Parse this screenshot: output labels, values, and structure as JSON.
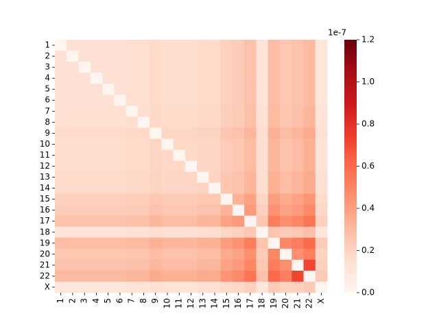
{
  "chart_data": {
    "type": "heatmap",
    "rows": [
      "1",
      "2",
      "3",
      "4",
      "5",
      "6",
      "7",
      "8",
      "9",
      "10",
      "11",
      "12",
      "13",
      "14",
      "15",
      "16",
      "17",
      "18",
      "19",
      "20",
      "21",
      "22",
      "X"
    ],
    "columns": [
      "1",
      "2",
      "3",
      "4",
      "5",
      "6",
      "7",
      "8",
      "9",
      "10",
      "11",
      "12",
      "13",
      "14",
      "15",
      "16",
      "17",
      "18",
      "19",
      "20",
      "21",
      "22",
      "X"
    ],
    "values": [
      [
        0,
        0.14,
        0.14,
        0.14,
        0.14,
        0.14,
        0.15,
        0.15,
        0.17,
        0.16,
        0.16,
        0.16,
        0.17,
        0.17,
        0.21,
        0.23,
        0.27,
        0.13,
        0.29,
        0.25,
        0.27,
        0.3,
        0.11
      ],
      [
        0.14,
        0,
        0.14,
        0.14,
        0.14,
        0.14,
        0.15,
        0.15,
        0.17,
        0.16,
        0.16,
        0.16,
        0.17,
        0.17,
        0.21,
        0.23,
        0.27,
        0.13,
        0.29,
        0.25,
        0.27,
        0.3,
        0.11
      ],
      [
        0.14,
        0.14,
        0,
        0.14,
        0.14,
        0.14,
        0.15,
        0.15,
        0.17,
        0.16,
        0.16,
        0.16,
        0.17,
        0.17,
        0.21,
        0.23,
        0.27,
        0.13,
        0.29,
        0.25,
        0.27,
        0.3,
        0.11
      ],
      [
        0.14,
        0.14,
        0.14,
        0,
        0.14,
        0.14,
        0.15,
        0.15,
        0.17,
        0.16,
        0.16,
        0.16,
        0.17,
        0.17,
        0.21,
        0.23,
        0.27,
        0.13,
        0.29,
        0.25,
        0.27,
        0.3,
        0.11
      ],
      [
        0.14,
        0.14,
        0.14,
        0.14,
        0,
        0.14,
        0.15,
        0.15,
        0.17,
        0.16,
        0.16,
        0.16,
        0.17,
        0.17,
        0.21,
        0.23,
        0.27,
        0.13,
        0.29,
        0.25,
        0.27,
        0.3,
        0.11
      ],
      [
        0.14,
        0.14,
        0.14,
        0.14,
        0.14,
        0,
        0.15,
        0.15,
        0.17,
        0.16,
        0.16,
        0.16,
        0.17,
        0.17,
        0.21,
        0.23,
        0.27,
        0.13,
        0.29,
        0.25,
        0.27,
        0.3,
        0.11
      ],
      [
        0.15,
        0.15,
        0.15,
        0.15,
        0.15,
        0.15,
        0,
        0.16,
        0.18,
        0.17,
        0.17,
        0.17,
        0.18,
        0.18,
        0.22,
        0.24,
        0.28,
        0.14,
        0.3,
        0.26,
        0.28,
        0.32,
        0.12
      ],
      [
        0.15,
        0.15,
        0.15,
        0.15,
        0.15,
        0.15,
        0.16,
        0,
        0.18,
        0.17,
        0.17,
        0.17,
        0.18,
        0.18,
        0.22,
        0.24,
        0.28,
        0.14,
        0.3,
        0.26,
        0.28,
        0.32,
        0.12
      ],
      [
        0.17,
        0.17,
        0.17,
        0.17,
        0.17,
        0.17,
        0.18,
        0.18,
        0,
        0.19,
        0.19,
        0.19,
        0.2,
        0.2,
        0.25,
        0.27,
        0.32,
        0.16,
        0.34,
        0.29,
        0.32,
        0.36,
        0.14
      ],
      [
        0.16,
        0.16,
        0.16,
        0.16,
        0.16,
        0.16,
        0.17,
        0.17,
        0.19,
        0,
        0.18,
        0.18,
        0.19,
        0.19,
        0.23,
        0.25,
        0.29,
        0.15,
        0.32,
        0.27,
        0.29,
        0.34,
        0.13
      ],
      [
        0.16,
        0.16,
        0.16,
        0.16,
        0.16,
        0.16,
        0.17,
        0.17,
        0.19,
        0.18,
        0,
        0.18,
        0.19,
        0.19,
        0.23,
        0.25,
        0.29,
        0.15,
        0.32,
        0.27,
        0.29,
        0.34,
        0.13
      ],
      [
        0.16,
        0.16,
        0.16,
        0.16,
        0.16,
        0.16,
        0.17,
        0.17,
        0.19,
        0.18,
        0.18,
        0,
        0.19,
        0.19,
        0.23,
        0.25,
        0.29,
        0.15,
        0.32,
        0.27,
        0.29,
        0.34,
        0.13
      ],
      [
        0.17,
        0.17,
        0.17,
        0.17,
        0.17,
        0.17,
        0.18,
        0.18,
        0.2,
        0.19,
        0.19,
        0.19,
        0,
        0.2,
        0.25,
        0.27,
        0.32,
        0.16,
        0.34,
        0.29,
        0.32,
        0.36,
        0.14
      ],
      [
        0.17,
        0.17,
        0.17,
        0.17,
        0.17,
        0.17,
        0.18,
        0.18,
        0.2,
        0.19,
        0.19,
        0.19,
        0.2,
        0,
        0.25,
        0.27,
        0.32,
        0.16,
        0.34,
        0.29,
        0.32,
        0.36,
        0.14
      ],
      [
        0.21,
        0.21,
        0.21,
        0.21,
        0.21,
        0.21,
        0.22,
        0.22,
        0.25,
        0.23,
        0.23,
        0.23,
        0.25,
        0.25,
        0,
        0.33,
        0.39,
        0.19,
        0.41,
        0.36,
        0.39,
        0.44,
        0.17
      ],
      [
        0.23,
        0.23,
        0.23,
        0.23,
        0.23,
        0.23,
        0.24,
        0.24,
        0.27,
        0.25,
        0.25,
        0.25,
        0.27,
        0.27,
        0.33,
        0,
        0.42,
        0.21,
        0.45,
        0.39,
        0.42,
        0.48,
        0.18
      ],
      [
        0.27,
        0.27,
        0.27,
        0.27,
        0.27,
        0.27,
        0.28,
        0.28,
        0.32,
        0.29,
        0.29,
        0.29,
        0.32,
        0.32,
        0.39,
        0.42,
        0,
        0.25,
        0.53,
        0.46,
        0.49,
        0.56,
        0.21
      ],
      [
        0.13,
        0.13,
        0.13,
        0.13,
        0.13,
        0.13,
        0.14,
        0.14,
        0.16,
        0.15,
        0.15,
        0.15,
        0.16,
        0.16,
        0.19,
        0.21,
        0.25,
        0,
        0.26,
        0.23,
        0.25,
        0.28,
        0.11
      ],
      [
        0.29,
        0.29,
        0.29,
        0.29,
        0.29,
        0.29,
        0.3,
        0.3,
        0.34,
        0.32,
        0.32,
        0.32,
        0.34,
        0.34,
        0.41,
        0.45,
        0.53,
        0.26,
        0,
        0.49,
        0.53,
        0.6,
        0.23
      ],
      [
        0.25,
        0.25,
        0.25,
        0.25,
        0.25,
        0.25,
        0.26,
        0.26,
        0.29,
        0.27,
        0.27,
        0.27,
        0.29,
        0.29,
        0.36,
        0.39,
        0.46,
        0.23,
        0.49,
        0,
        0.46,
        0.52,
        0.2
      ],
      [
        0.27,
        0.27,
        0.27,
        0.27,
        0.27,
        0.27,
        0.28,
        0.28,
        0.32,
        0.29,
        0.29,
        0.29,
        0.32,
        0.32,
        0.39,
        0.42,
        0.49,
        0.25,
        0.53,
        0.46,
        0,
        0.72,
        0.21
      ],
      [
        0.3,
        0.3,
        0.3,
        0.3,
        0.3,
        0.3,
        0.32,
        0.32,
        0.36,
        0.34,
        0.34,
        0.34,
        0.36,
        0.36,
        0.44,
        0.48,
        0.56,
        0.28,
        0.6,
        0.52,
        0.72,
        0,
        0.24
      ],
      [
        0.11,
        0.11,
        0.11,
        0.11,
        0.11,
        0.11,
        0.12,
        0.12,
        0.14,
        0.13,
        0.13,
        0.13,
        0.14,
        0.14,
        0.17,
        0.18,
        0.21,
        0.11,
        0.23,
        0.2,
        0.21,
        0.24,
        0
      ]
    ],
    "cmap": "Reds",
    "clim": [
      0,
      1.2
    ],
    "cticks": [
      {
        "value": 0,
        "label": "0.0"
      },
      {
        "value": 0.2,
        "label": "0.2"
      },
      {
        "value": 0.4,
        "label": "0.4"
      },
      {
        "value": 0.6,
        "label": "0.6"
      },
      {
        "value": 0.8,
        "label": "0.8"
      },
      {
        "value": 1.0,
        "label": "1.0"
      },
      {
        "value": 1.2,
        "label": "1.2"
      }
    ],
    "colorbar_offset": "1e-7"
  }
}
